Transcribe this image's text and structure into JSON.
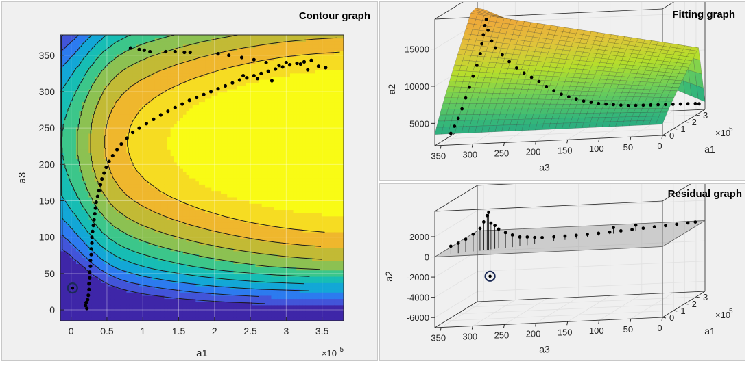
{
  "panels": {
    "contour_title": "Contour graph",
    "fitting_title": "Fitting graph",
    "residual_title": "Residual graph"
  },
  "chart_data": [
    {
      "type": "contour",
      "title": "Contour graph",
      "xlabel": "a1",
      "ylabel": "a3",
      "x_exponent": "×10",
      "x_exponent_power": "5",
      "xticks": [
        "0",
        "0.5",
        "1",
        "1.5",
        "2",
        "2.5",
        "3",
        "3.5"
      ],
      "xtick_values": [
        0,
        0.5,
        1,
        1.5,
        2,
        2.5,
        3,
        3.5
      ],
      "yticks": [
        "0",
        "50",
        "100",
        "150",
        "200",
        "250",
        "300",
        "350"
      ],
      "ytick_values": [
        0,
        50,
        100,
        150,
        200,
        250,
        300,
        350
      ],
      "xlim": [
        -0.15,
        3.8
      ],
      "ylim": [
        -15,
        378
      ],
      "grid": true,
      "colormap": [
        "#3e26a8",
        "#4255d9",
        "#2c7bef",
        "#13a7d6",
        "#17bdb4",
        "#3cc68a",
        "#8cc152",
        "#c2ba35",
        "#efb72d",
        "#f6dc22",
        "#f9fb15"
      ],
      "highlight_marker": {
        "x": 0.02,
        "y": 30
      },
      "points": [
        [
          0.2,
          6
        ],
        [
          0.21,
          10
        ],
        [
          0.22,
          2
        ],
        [
          0.23,
          14
        ],
        [
          0.24,
          20
        ],
        [
          0.25,
          28
        ],
        [
          0.25,
          36
        ],
        [
          0.26,
          44
        ],
        [
          0.26,
          52
        ],
        [
          0.27,
          60
        ],
        [
          0.27,
          68
        ],
        [
          0.28,
          76
        ],
        [
          0.28,
          84
        ],
        [
          0.29,
          92
        ],
        [
          0.29,
          100
        ],
        [
          0.3,
          108
        ],
        [
          0.31,
          116
        ],
        [
          0.32,
          124
        ],
        [
          0.33,
          132
        ],
        [
          0.34,
          140
        ],
        [
          0.35,
          148
        ],
        [
          0.37,
          156
        ],
        [
          0.39,
          164
        ],
        [
          0.41,
          172
        ],
        [
          0.43,
          180
        ],
        [
          0.46,
          188
        ],
        [
          0.49,
          196
        ],
        [
          0.53,
          204
        ],
        [
          0.58,
          212
        ],
        [
          0.64,
          220
        ],
        [
          0.7,
          228
        ],
        [
          0.78,
          236
        ],
        [
          0.86,
          244
        ],
        [
          0.95,
          250
        ],
        [
          1.05,
          256
        ],
        [
          1.15,
          262
        ],
        [
          1.25,
          268
        ],
        [
          1.35,
          273
        ],
        [
          1.45,
          278
        ],
        [
          1.55,
          283
        ],
        [
          1.65,
          288
        ],
        [
          1.75,
          292
        ],
        [
          1.85,
          296
        ],
        [
          1.95,
          300
        ],
        [
          2.05,
          304
        ],
        [
          2.15,
          308
        ],
        [
          2.25,
          312
        ],
        [
          2.35,
          316
        ],
        [
          2.45,
          319
        ],
        [
          2.55,
          322
        ],
        [
          2.65,
          325
        ],
        [
          2.75,
          328
        ],
        [
          2.85,
          331
        ],
        [
          2.95,
          334
        ],
        [
          3.05,
          337
        ],
        [
          3.15,
          339
        ],
        [
          3.25,
          341
        ],
        [
          3.35,
          343
        ],
        [
          3.45,
          335
        ],
        [
          3.55,
          333
        ],
        [
          0.83,
          360
        ],
        [
          0.95,
          358
        ],
        [
          1.02,
          357
        ],
        [
          1.1,
          355
        ],
        [
          1.32,
          355
        ],
        [
          1.45,
          355
        ],
        [
          1.58,
          354
        ],
        [
          1.66,
          354
        ],
        [
          2.05,
          352
        ],
        [
          2.2,
          350
        ],
        [
          2.38,
          347
        ],
        [
          2.55,
          344
        ],
        [
          2.72,
          340
        ],
        [
          2.9,
          336
        ],
        [
          3.0,
          340
        ],
        [
          3.2,
          338
        ],
        [
          3.3,
          330
        ],
        [
          2.8,
          315
        ],
        [
          2.6,
          318
        ],
        [
          2.4,
          322
        ]
      ]
    },
    {
      "type": "surface3d",
      "title": "Fitting graph",
      "xlabel": "a3",
      "ylabel": "a1",
      "zlabel": "a2",
      "xticks": [
        "350",
        "300",
        "250",
        "200",
        "150",
        "100",
        "50",
        "0"
      ],
      "xtick_values": [
        350,
        300,
        250,
        200,
        150,
        100,
        50,
        0
      ],
      "yticks": [
        "0",
        "1",
        "2",
        "3"
      ],
      "ytick_values": [
        0,
        1,
        2,
        3
      ],
      "y_exponent": "×10",
      "y_exponent_power": "5",
      "zticks": [
        "5000",
        "10000",
        "15000"
      ],
      "ztick_values": [
        5000,
        10000,
        15000
      ],
      "zlim": [
        2000,
        19000
      ],
      "xlim": [
        0,
        360
      ],
      "ylim": [
        0,
        3.8
      ],
      "points": [
        [
          340,
          0.3,
          3300
        ],
        [
          335,
          0.35,
          4200
        ],
        [
          330,
          0.4,
          5200
        ],
        [
          325,
          0.45,
          6400
        ],
        [
          320,
          0.5,
          7800
        ],
        [
          315,
          0.55,
          9200
        ],
        [
          310,
          0.6,
          10600
        ],
        [
          305,
          0.65,
          12000
        ],
        [
          300,
          0.68,
          13500
        ],
        [
          298,
          0.7,
          14800
        ],
        [
          296,
          0.72,
          16000
        ],
        [
          294,
          0.74,
          17200
        ],
        [
          292,
          0.76,
          18000
        ],
        [
          290,
          0.8,
          16500
        ],
        [
          285,
          0.85,
          15000
        ],
        [
          280,
          0.9,
          14000
        ],
        [
          270,
          0.95,
          13000
        ],
        [
          260,
          1.0,
          12000
        ],
        [
          250,
          1.1,
          11000
        ],
        [
          240,
          1.2,
          10200
        ],
        [
          230,
          1.3,
          9500
        ],
        [
          220,
          1.4,
          8800
        ],
        [
          210,
          1.5,
          8000
        ],
        [
          200,
          1.6,
          7300
        ],
        [
          190,
          1.7,
          6700
        ],
        [
          180,
          1.8,
          6200
        ],
        [
          170,
          1.9,
          5800
        ],
        [
          160,
          2.0,
          5400
        ],
        [
          150,
          2.1,
          5100
        ],
        [
          140,
          2.2,
          4800
        ],
        [
          130,
          2.3,
          4600
        ],
        [
          120,
          2.4,
          4400
        ],
        [
          110,
          2.5,
          4200
        ],
        [
          100,
          2.6,
          4000
        ],
        [
          90,
          2.7,
          3900
        ],
        [
          80,
          2.8,
          3800
        ],
        [
          70,
          2.9,
          3700
        ],
        [
          60,
          3.0,
          3600
        ],
        [
          50,
          3.1,
          3500
        ],
        [
          40,
          3.2,
          3400
        ],
        [
          30,
          3.3,
          3300
        ],
        [
          20,
          3.4,
          3200
        ],
        [
          10,
          3.5,
          3100
        ],
        [
          5,
          3.55,
          3000
        ]
      ]
    },
    {
      "type": "residual3d",
      "title": "Residual graph",
      "xlabel": "a3",
      "ylabel": "a1",
      "zlabel": "a2",
      "xticks": [
        "350",
        "300",
        "250",
        "200",
        "150",
        "100",
        "50",
        "0"
      ],
      "xtick_values": [
        350,
        300,
        250,
        200,
        150,
        100,
        50,
        0
      ],
      "yticks": [
        "0",
        "1",
        "2",
        "3"
      ],
      "ytick_values": [
        0,
        1,
        2,
        3
      ],
      "y_exponent": "×10",
      "y_exponent_power": "5",
      "zticks": [
        "2000",
        "0",
        "-2000",
        "-4000",
        "-6000"
      ],
      "ztick_values": [
        2000,
        0,
        -2000,
        -4000,
        -6000
      ],
      "zlim": [
        -7000,
        4500
      ],
      "xlim": [
        0,
        360
      ],
      "ylim": [
        0,
        3.8
      ],
      "highlight_marker": {
        "x": 285,
        "y": 0.7,
        "z": -2600
      },
      "points": [
        [
          340,
          0.3,
          800
        ],
        [
          330,
          0.4,
          1000
        ],
        [
          320,
          0.5,
          1300
        ],
        [
          310,
          0.6,
          1700
        ],
        [
          300,
          0.65,
          2200
        ],
        [
          295,
          0.7,
          2800
        ],
        [
          290,
          0.72,
          3400
        ],
        [
          288,
          0.75,
          3700
        ],
        [
          285,
          0.78,
          2600
        ],
        [
          280,
          0.85,
          2300
        ],
        [
          275,
          0.9,
          1900
        ],
        [
          265,
          0.95,
          1500
        ],
        [
          255,
          1.0,
          1200
        ],
        [
          245,
          1.1,
          900
        ],
        [
          235,
          1.2,
          800
        ],
        [
          225,
          1.3,
          650
        ],
        [
          215,
          1.4,
          550
        ],
        [
          200,
          1.6,
          450
        ],
        [
          185,
          1.75,
          380
        ],
        [
          170,
          1.9,
          320
        ],
        [
          155,
          2.05,
          270
        ],
        [
          140,
          2.2,
          230
        ],
        [
          125,
          2.35,
          200
        ],
        [
          110,
          2.5,
          180
        ],
        [
          95,
          2.65,
          160
        ],
        [
          80,
          2.8,
          150
        ],
        [
          65,
          2.95,
          140
        ],
        [
          50,
          3.1,
          120
        ],
        [
          35,
          3.25,
          110
        ],
        [
          20,
          3.4,
          100
        ],
        [
          10,
          3.5,
          90
        ],
        [
          120,
          2.4,
          600
        ],
        [
          90,
          2.7,
          550
        ]
      ]
    }
  ]
}
